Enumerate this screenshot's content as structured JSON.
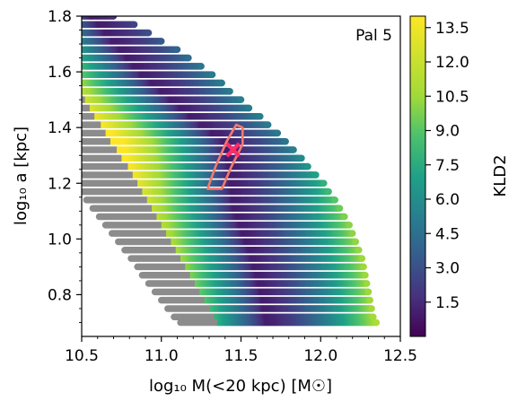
{
  "chart_data": {
    "type": "heatmap",
    "annotation": "Pal 5",
    "xlabel": "log₁₀ M(<20 kpc) [M☉]",
    "ylabel": "log₁₀ a [kpc]",
    "colorbar_label": "KLD2",
    "colormap": "viridis",
    "colorbar_range": [
      0.0,
      14.0
    ],
    "colorbar_ticks": [
      "1.5",
      "3.0",
      "4.5",
      "6.0",
      "7.5",
      "9.0",
      "10.5",
      "12.0",
      "13.5"
    ],
    "xlim": [
      10.5,
      12.5
    ],
    "ylim": [
      0.65,
      1.8
    ],
    "x_ticks": [
      "10.5",
      "11.0",
      "11.5",
      "12.0",
      "12.5"
    ],
    "y_ticks": [
      "0.8",
      "1.0",
      "1.2",
      "1.4",
      "1.6",
      "1.8"
    ],
    "grid": false,
    "excluded_color": "#8c8c8c",
    "rows": [
      {
        "y": 1.8,
        "x_start": 10.5,
        "x_gray_end": 10.5,
        "x_end": 10.7
      },
      {
        "y": 1.77,
        "x_start": 10.5,
        "x_gray_end": 10.5,
        "x_end": 10.83
      },
      {
        "y": 1.74,
        "x_start": 10.5,
        "x_gray_end": 10.5,
        "x_end": 10.92
      },
      {
        "y": 1.71,
        "x_start": 10.5,
        "x_gray_end": 10.5,
        "x_end": 11.0
      },
      {
        "y": 1.68,
        "x_start": 10.5,
        "x_gray_end": 10.5,
        "x_end": 11.1
      },
      {
        "y": 1.65,
        "x_start": 10.5,
        "x_gray_end": 10.5,
        "x_end": 11.17
      },
      {
        "y": 1.62,
        "x_start": 10.5,
        "x_gray_end": 10.5,
        "x_end": 11.25
      },
      {
        "y": 1.59,
        "x_start": 10.5,
        "x_gray_end": 10.5,
        "x_end": 11.32
      },
      {
        "y": 1.56,
        "x_start": 10.5,
        "x_gray_end": 10.5,
        "x_end": 11.38
      },
      {
        "y": 1.53,
        "x_start": 10.5,
        "x_gray_end": 10.5,
        "x_end": 11.43
      },
      {
        "y": 1.5,
        "x_start": 10.5,
        "x_gray_end": 10.52,
        "x_end": 11.5
      },
      {
        "y": 1.47,
        "x_start": 10.5,
        "x_gray_end": 10.55,
        "x_end": 11.55
      },
      {
        "y": 1.44,
        "x_start": 10.5,
        "x_gray_end": 10.58,
        "x_end": 11.62
      },
      {
        "y": 1.41,
        "x_start": 10.5,
        "x_gray_end": 10.62,
        "x_end": 11.67
      },
      {
        "y": 1.38,
        "x_start": 10.5,
        "x_gray_end": 10.65,
        "x_end": 11.73
      },
      {
        "y": 1.35,
        "x_start": 10.5,
        "x_gray_end": 10.68,
        "x_end": 11.78
      },
      {
        "y": 1.32,
        "x_start": 10.5,
        "x_gray_end": 10.72,
        "x_end": 11.83
      },
      {
        "y": 1.29,
        "x_start": 10.5,
        "x_gray_end": 10.75,
        "x_end": 11.88
      },
      {
        "y": 1.26,
        "x_start": 10.5,
        "x_gray_end": 10.79,
        "x_end": 11.92
      },
      {
        "y": 1.23,
        "x_start": 10.5,
        "x_gray_end": 10.82,
        "x_end": 11.97
      },
      {
        "y": 1.2,
        "x_start": 10.5,
        "x_gray_end": 10.85,
        "x_end": 12.02
      },
      {
        "y": 1.17,
        "x_start": 10.5,
        "x_gray_end": 10.88,
        "x_end": 12.05
      },
      {
        "y": 1.14,
        "x_start": 10.53,
        "x_gray_end": 10.91,
        "x_end": 12.09
      },
      {
        "y": 1.11,
        "x_start": 10.57,
        "x_gray_end": 10.94,
        "x_end": 12.12
      },
      {
        "y": 1.08,
        "x_start": 10.61,
        "x_gray_end": 10.97,
        "x_end": 12.15
      },
      {
        "y": 1.05,
        "x_start": 10.65,
        "x_gray_end": 11.0,
        "x_end": 12.18
      },
      {
        "y": 1.02,
        "x_start": 10.69,
        "x_gray_end": 11.03,
        "x_end": 12.2
      },
      {
        "y": 0.99,
        "x_start": 10.73,
        "x_gray_end": 11.06,
        "x_end": 12.22
      },
      {
        "y": 0.96,
        "x_start": 10.77,
        "x_gray_end": 11.09,
        "x_end": 12.24
      },
      {
        "y": 0.93,
        "x_start": 10.81,
        "x_gray_end": 11.12,
        "x_end": 12.26
      },
      {
        "y": 0.9,
        "x_start": 10.85,
        "x_gray_end": 11.15,
        "x_end": 12.27
      },
      {
        "y": 0.87,
        "x_start": 10.88,
        "x_gray_end": 11.18,
        "x_end": 12.28
      },
      {
        "y": 0.84,
        "x_start": 10.92,
        "x_gray_end": 11.21,
        "x_end": 12.29
      },
      {
        "y": 0.81,
        "x_start": 10.96,
        "x_gray_end": 11.24,
        "x_end": 12.3
      },
      {
        "y": 0.78,
        "x_start": 11.0,
        "x_gray_end": 11.27,
        "x_end": 12.31
      },
      {
        "y": 0.75,
        "x_start": 11.04,
        "x_gray_end": 11.3,
        "x_end": 12.32
      },
      {
        "y": 0.72,
        "x_start": 11.08,
        "x_gray_end": 11.33,
        "x_end": 12.33
      },
      {
        "y": 0.7,
        "x_start": 11.12,
        "x_gray_end": 11.35,
        "x_end": 12.35
      }
    ],
    "kld_minimum_ridge": [
      {
        "y": 1.8,
        "x": 10.55
      },
      {
        "y": 1.6,
        "x": 10.85
      },
      {
        "y": 1.45,
        "x": 11.15
      },
      {
        "y": 1.35,
        "x": 11.38
      },
      {
        "y": 1.25,
        "x": 11.42
      },
      {
        "y": 1.1,
        "x": 11.45
      },
      {
        "y": 0.95,
        "x": 11.55
      },
      {
        "y": 0.8,
        "x": 11.62
      },
      {
        "y": 0.7,
        "x": 11.65
      }
    ],
    "contour_color": "#f47a6b",
    "contour": [
      [
        11.29,
        1.18
      ],
      [
        11.38,
        1.18
      ],
      [
        11.44,
        1.26
      ],
      [
        11.51,
        1.34
      ],
      [
        11.51,
        1.4
      ],
      [
        11.47,
        1.41
      ],
      [
        11.41,
        1.35
      ],
      [
        11.34,
        1.26
      ],
      [
        11.29,
        1.18
      ]
    ],
    "best_fit": {
      "x": 11.45,
      "y": 1.32,
      "marker": "x",
      "color": "#ff2b6b"
    }
  }
}
